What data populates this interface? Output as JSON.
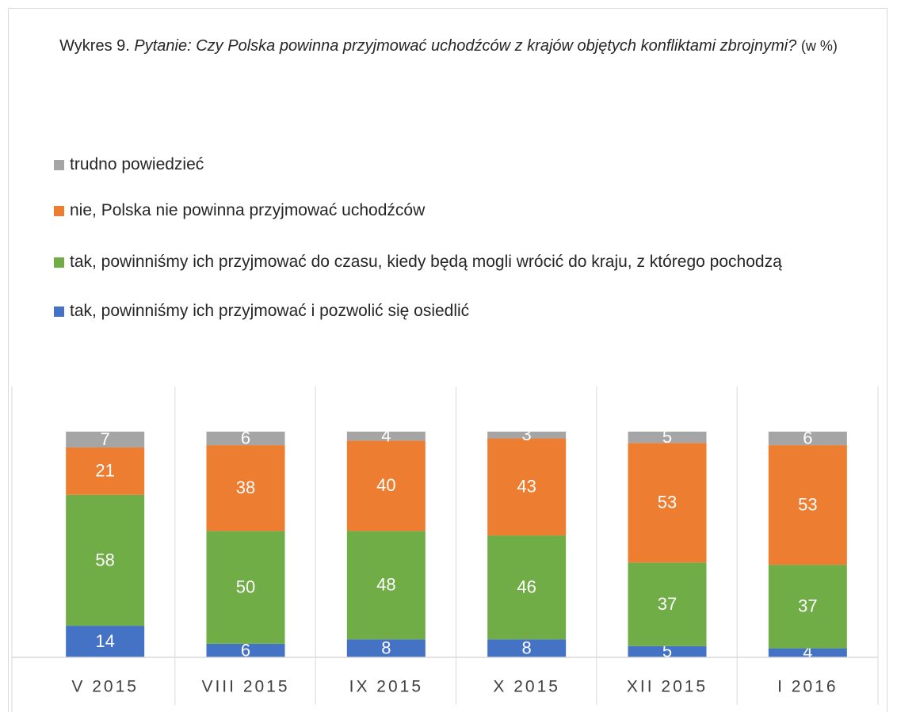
{
  "chart_data": {
    "type": "stacked_bar",
    "title": [
      "Wykres 9.",
      "Pytanie: Czy Polska powinna przyjmować uchodźców z krajów objętych konfliktami zbrojnymi?",
      "(w %)"
    ],
    "categories": [
      "V 2015",
      "VIII 2015",
      "IX 2015",
      "X 2015",
      "XII 2015",
      "I 2016"
    ],
    "series": [
      {
        "name": "tak, powinniśmy ich przyjmować i pozwolić się osiedlić",
        "color": "#4472c4",
        "values": [
          14,
          6,
          8,
          8,
          5,
          4
        ]
      },
      {
        "name": "tak, powinniśmy ich przyjmować do czasu, kiedy będą mogli wrócić do kraju, z którego pochodzą",
        "color": "#70ad47",
        "values": [
          58,
          50,
          48,
          46,
          37,
          37
        ]
      },
      {
        "name": "nie, Polska nie powinna przyjmować uchodźców",
        "color": "#ed7d31",
        "values": [
          21,
          38,
          40,
          43,
          53,
          53
        ]
      },
      {
        "name": "trudno powiedzieć",
        "color": "#a5a5a5",
        "values": [
          7,
          6,
          4,
          3,
          5,
          6
        ]
      }
    ],
    "ylim": [
      0,
      120
    ],
    "legend": "top"
  }
}
